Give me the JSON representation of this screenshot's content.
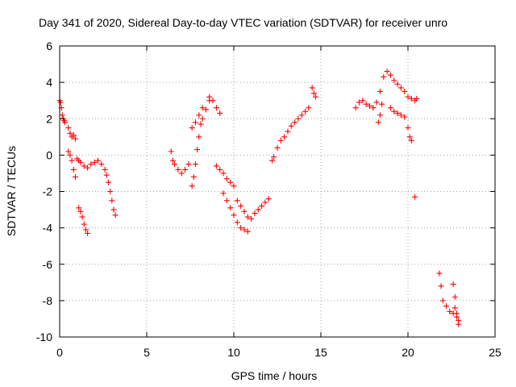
{
  "chart_data": {
    "type": "scatter",
    "title": "Day 341 of 2020, Sidereal Day-to-day VTEC variation (SDTVAR) for receiver unro",
    "xlabel": "GPS time / hours",
    "ylabel": "SDTVAR / TECUs",
    "xlim": [
      0,
      25
    ],
    "ylim": [
      -10,
      6
    ],
    "xticks": [
      0,
      5,
      10,
      15,
      20,
      25
    ],
    "yticks": [
      -10,
      -8,
      -6,
      -4,
      -2,
      0,
      2,
      4,
      6
    ],
    "xtick_labels": [
      "0",
      "5",
      "10",
      "15",
      "20",
      "25"
    ],
    "ytick_labels": [
      "-10",
      "-8",
      "-6",
      "-4",
      "-2",
      "0",
      "2",
      "4",
      "6"
    ],
    "grid": true,
    "marker": "+",
    "color": "#ff0000",
    "series": [
      {
        "name": "SDTVAR",
        "x": [
          0.0,
          0.05,
          0.1,
          0.15,
          0.2,
          0.25,
          0.3,
          0.5,
          0.6,
          0.7,
          0.8,
          0.9,
          0.5,
          0.6,
          0.7,
          0.8,
          0.9,
          1.0,
          1.1,
          1.2,
          1.4,
          1.6,
          1.8,
          2.0,
          2.2,
          2.4,
          2.6,
          2.7,
          2.8,
          2.9,
          3.0,
          3.1,
          3.2,
          1.1,
          1.2,
          1.3,
          1.4,
          1.5,
          1.6,
          6.4,
          6.5,
          6.6,
          6.8,
          7.0,
          7.2,
          7.4,
          7.6,
          7.7,
          7.8,
          7.9,
          8.0,
          8.1,
          8.2,
          8.4,
          8.6,
          7.6,
          7.8,
          8.0,
          8.2,
          8.6,
          8.8,
          9.0,
          9.2,
          9.0,
          9.2,
          9.4,
          9.6,
          9.8,
          10.0,
          9.4,
          9.6,
          9.8,
          10.0,
          10.2,
          10.4,
          10.6,
          10.8,
          10.2,
          10.4,
          10.6,
          10.8,
          11.0,
          11.2,
          11.4,
          11.6,
          11.8,
          12.0,
          12.2,
          12.3,
          12.5,
          12.7,
          12.9,
          13.1,
          13.3,
          13.5,
          13.7,
          13.9,
          14.1,
          14.3,
          14.5,
          14.6,
          14.7,
          17.0,
          17.2,
          17.4,
          17.6,
          17.8,
          18.0,
          18.2,
          18.4,
          18.6,
          18.8,
          19.0,
          19.2,
          19.4,
          19.6,
          19.8,
          20.0,
          20.2,
          20.4,
          20.5,
          18.3,
          18.4,
          18.5,
          19.0,
          19.2,
          19.4,
          19.6,
          19.8,
          20.0,
          20.1,
          20.2,
          20.4,
          21.8,
          21.9,
          22.0,
          22.2,
          22.4,
          22.6,
          22.7,
          22.8,
          22.9,
          22.6,
          22.7,
          22.8,
          22.9
        ],
        "y": [
          3.0,
          2.9,
          2.6,
          2.2,
          2.0,
          1.9,
          1.8,
          1.5,
          1.2,
          1.0,
          1.1,
          0.9,
          0.2,
          0.0,
          -0.3,
          -0.8,
          -1.2,
          -0.2,
          -0.3,
          -0.4,
          -0.6,
          -0.7,
          -0.5,
          -0.4,
          -0.3,
          -0.5,
          -0.8,
          -1.1,
          -1.5,
          -2.0,
          -2.5,
          -3.0,
          -3.3,
          -2.9,
          -3.1,
          -3.4,
          -3.8,
          -4.1,
          -4.3,
          0.2,
          -0.3,
          -0.5,
          -0.8,
          -1.0,
          -0.8,
          -0.5,
          -1.7,
          -1.2,
          -0.5,
          0.3,
          1.0,
          1.7,
          2.0,
          2.5,
          3.0,
          1.5,
          1.8,
          2.2,
          2.6,
          3.2,
          3.0,
          2.6,
          2.3,
          -0.6,
          -0.8,
          -1.0,
          -1.3,
          -1.5,
          -1.7,
          -2.1,
          -2.5,
          -2.9,
          -3.3,
          -3.7,
          -4.0,
          -4.1,
          -4.2,
          -2.5,
          -2.8,
          -3.1,
          -3.4,
          -3.5,
          -3.2,
          -3.0,
          -2.8,
          -2.6,
          -2.4,
          -0.3,
          -0.1,
          0.4,
          0.8,
          1.0,
          1.3,
          1.6,
          1.8,
          2.0,
          2.2,
          2.4,
          2.6,
          3.7,
          3.4,
          3.2,
          2.6,
          2.9,
          3.0,
          2.8,
          2.7,
          2.6,
          2.9,
          3.5,
          4.3,
          4.6,
          4.4,
          4.1,
          3.9,
          3.7,
          3.5,
          3.2,
          3.1,
          3.0,
          3.1,
          1.8,
          2.2,
          2.8,
          2.6,
          2.4,
          2.3,
          2.2,
          2.1,
          1.5,
          1.0,
          0.8,
          -2.3,
          -6.5,
          -7.2,
          -8.0,
          -8.3,
          -8.6,
          -8.7,
          -8.4,
          -8.9,
          -9.3,
          -7.1,
          -7.8,
          -8.7,
          -9.1
        ]
      }
    ]
  }
}
